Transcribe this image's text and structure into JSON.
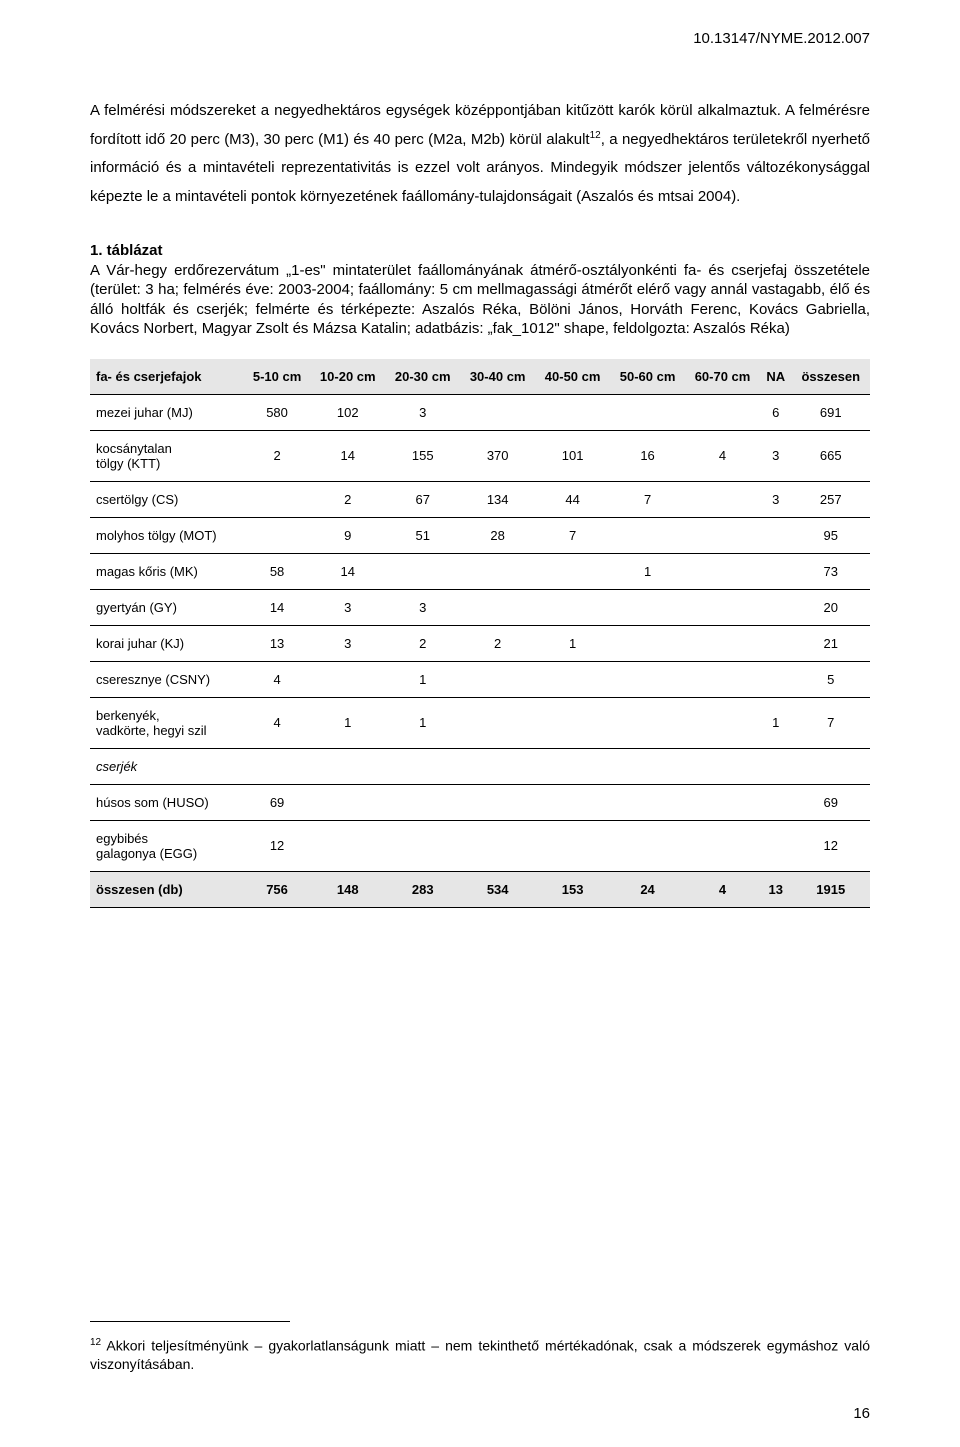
{
  "doi": "10.13147/NYME.2012.007",
  "paragraph1_html": "A felmérési módszereket a negyedhektáros egységek középpontjában kitűzött karók körül alkalmaztuk. A felmérésre fordított idő 20 perc (M3), 30 perc (M1) és 40 perc (M2a, M2b) körül alakult<sup>12</sup>, a negyedhektáros területekről nyerhető információ és a mintavételi reprezentativitás is ezzel volt arányos. Mindegyik módszer jelentős változékonysággal képezte le a mintavételi pontok környezetének faállomány-tulajdonságait (Aszalós és mtsai 2004).",
  "table_caption_title": "1. táblázat",
  "table_caption_body": "A Vár-hegy erdőrezervátum „1-es\" mintaterület faállományának átmérő-osztályonkénti fa- és cserjefaj összetétele (terület: 3 ha; felmérés éve: 2003-2004; faállomány: 5 cm mellmagassági átmérőt elérő vagy annál vastagabb, élő és álló holtfák és cserjék; felmérte és térképezte: Aszalós Réka, Bölöni János, Horváth Ferenc, Kovács Gabriella, Kovács Norbert, Magyar Zsolt és Mázsa Katalin; adatbázis: „fak_1012\" shape, feldolgozta: Aszalós Réka)",
  "table": {
    "columns": [
      "fa- és cserjefajok",
      "5-10 cm",
      "10-20 cm",
      "20-30 cm",
      "30-40 cm",
      "40-50 cm",
      "50-60 cm",
      "60-70 cm",
      "NA",
      "összesen"
    ],
    "rows": [
      {
        "label": "mezei juhar (MJ)",
        "c": [
          "580",
          "102",
          "3",
          "",
          "",
          "",
          "",
          "6",
          "691"
        ]
      },
      {
        "label": "kocsánytalan tölgy (KTT)",
        "c": [
          "2",
          "14",
          "155",
          "370",
          "101",
          "16",
          "4",
          "3",
          "665"
        ]
      },
      {
        "label": "csertölgy (CS)",
        "c": [
          "",
          "2",
          "67",
          "134",
          "44",
          "7",
          "",
          "3",
          "257"
        ]
      },
      {
        "label": "molyhos tölgy (MOT)",
        "c": [
          "",
          "9",
          "51",
          "28",
          "7",
          "",
          "",
          "",
          "95"
        ]
      },
      {
        "label": "magas kőris (MK)",
        "c": [
          "58",
          "14",
          "",
          "",
          "",
          "1",
          "",
          "",
          "73"
        ]
      },
      {
        "label": "gyertyán (GY)",
        "c": [
          "14",
          "3",
          "3",
          "",
          "",
          "",
          "",
          "",
          "20"
        ]
      },
      {
        "label": "korai juhar (KJ)",
        "c": [
          "13",
          "3",
          "2",
          "2",
          "1",
          "",
          "",
          "",
          "21"
        ]
      },
      {
        "label": "cseresznye (CSNY)",
        "c": [
          "4",
          "",
          "1",
          "",
          "",
          "",
          "",
          "",
          "5"
        ]
      },
      {
        "label": "berkenyék, vadkörte, hegyi szil",
        "c": [
          "4",
          "1",
          "1",
          "",
          "",
          "",
          "",
          "1",
          "7"
        ]
      }
    ],
    "section_label": "cserjék",
    "rows2": [
      {
        "label": "húsos som (HUSO)",
        "c": [
          "69",
          "",
          "",
          "",
          "",
          "",
          "",
          "",
          "69"
        ]
      },
      {
        "label": "egybibés galagonya (EGG)",
        "c": [
          "12",
          "",
          "",
          "",
          "",
          "",
          "",
          "",
          "12"
        ]
      }
    ],
    "total": {
      "label": "összesen (db)",
      "c": [
        "756",
        "148",
        "283",
        "534",
        "153",
        "24",
        "4",
        "13",
        "1915"
      ]
    }
  },
  "footnote_html": "<sup>12</sup> Akkori teljesítményünk – gyakorlatlanságunk miatt – nem tekinthető mértékadónak, csak a módszerek egymáshoz való viszonyításában.",
  "page_number": "16"
}
